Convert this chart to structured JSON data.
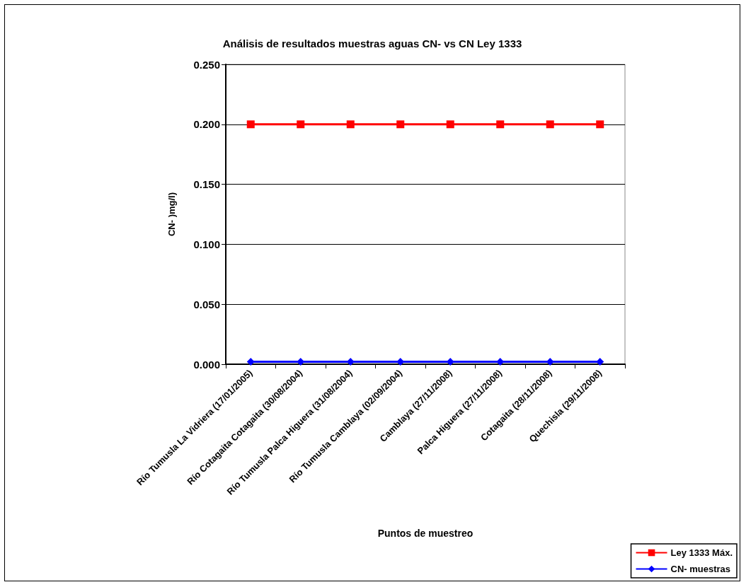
{
  "chart_data": {
    "type": "line",
    "title": "Análisis de resultados muestras aguas CN- vs CN Ley 1333",
    "xlabel": "Puntos de muestreo",
    "ylabel": "CN- )mg/l)",
    "categories": [
      "Río Tumusla La Vidriera (17/01/2005)",
      "Río Cotagaita Cotagaita (30/08/2004)",
      "Río Tumusla Palca Higuera (31/08/2004)",
      "Río Tumusla Camblaya (02/09/2004)",
      "Camblaya (27/11/2008)",
      "Palca Higuera (27/11/2008)",
      "Cotagaita (28/11/2008)",
      "Quechisla (29/11/2008)"
    ],
    "series": [
      {
        "name": "Ley 1333 Máx.",
        "color": "#ff0000",
        "marker": "square",
        "values": [
          0.2,
          0.2,
          0.2,
          0.2,
          0.2,
          0.2,
          0.2,
          0.2
        ]
      },
      {
        "name": "CN- muestras",
        "color": "#0000ff",
        "marker": "diamond",
        "values": [
          0.002,
          0.002,
          0.002,
          0.002,
          0.002,
          0.002,
          0.002,
          0.002
        ]
      }
    ],
    "ylim": [
      0,
      0.25
    ],
    "yticks": [
      {
        "value": 0,
        "label": "0.000"
      },
      {
        "value": 0.05,
        "label": "0.050"
      },
      {
        "value": 0.1,
        "label": "0.100"
      },
      {
        "value": 0.15,
        "label": "0.150"
      },
      {
        "value": 0.2,
        "label": "0.200"
      },
      {
        "value": 0.25,
        "label": "0.250"
      }
    ],
    "grid": "y",
    "legend": "bottom right",
    "line_style": "solid"
  }
}
